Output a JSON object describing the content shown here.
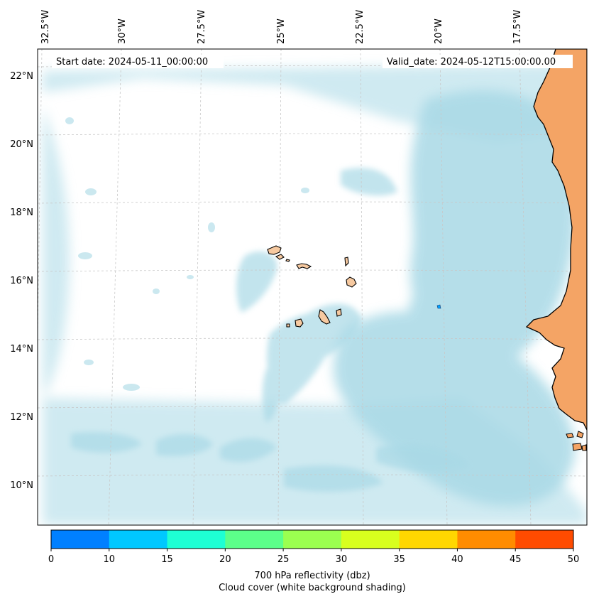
{
  "map": {
    "start_label": "Start date: 2024-05-11_00:00:00",
    "valid_label": "Valid_date: 2024-05-12T15:00:00.00",
    "lon_labels": [
      "32.5°W",
      "30°W",
      "27.5°W",
      "25°W",
      "22.5°W",
      "20°W",
      "17.5°W"
    ],
    "lat_labels": [
      "22°N",
      "20°N",
      "18°N",
      "16°N",
      "14°N",
      "12°N",
      "10°N"
    ],
    "land_color": "#f4a465",
    "island_color": "#f6c9a0",
    "cloud_color": "#a9d9e6",
    "reflectivity_spot_color": "#00a0ff",
    "extent": {
      "lon_min": -32.6,
      "lon_max": -15.3,
      "lat_min": 8.9,
      "lat_max": 22.8
    }
  },
  "colorbar": {
    "ticks": [
      "0",
      "10",
      "15",
      "20",
      "25",
      "30",
      "35",
      "40",
      "45",
      "50"
    ],
    "colors": [
      "#0080ff",
      "#00c8ff",
      "#1effd4",
      "#5cff8a",
      "#9bff50",
      "#d8ff1e",
      "#ffd700",
      "#ff8c00",
      "#ff4b00"
    ],
    "label": "700 hPa reflectivity (dbz)",
    "sublabel": "Cloud cover (white background shading)"
  }
}
